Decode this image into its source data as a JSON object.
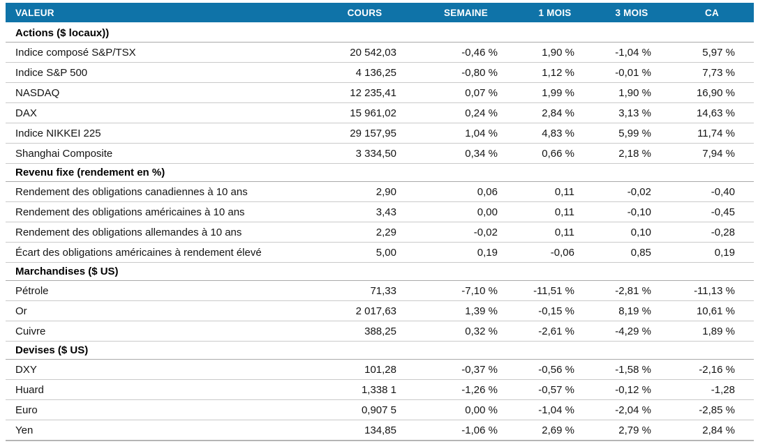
{
  "colors": {
    "header_bg": "#0F73A8",
    "positive": "#00A65A",
    "negative": "#E8322A",
    "row_border": "#C9C9C9",
    "section_border": "#A9A9A9"
  },
  "chart_data": {
    "type": "table",
    "columns": [
      "VALEUR",
      "COURS",
      "SEMAINE",
      "1 MOIS",
      "3 MOIS",
      "CA"
    ],
    "sections": [
      {
        "title": "Actions ($ locaux))",
        "rows": [
          {
            "label": "Indice composé S&P/TSX",
            "cours": "20 542,03",
            "changes": [
              {
                "text": "-0,46 %",
                "tone": "neg"
              },
              {
                "text": "1,90 %",
                "tone": "pos"
              },
              {
                "text": "-1,04 %",
                "tone": "neg"
              },
              {
                "text": "5,97 %",
                "tone": "pos"
              }
            ]
          },
          {
            "label": "Indice S&P 500",
            "cours": "4 136,25",
            "changes": [
              {
                "text": "-0,80 %",
                "tone": "neg"
              },
              {
                "text": "1,12 %",
                "tone": "pos"
              },
              {
                "text": "-0,01 %",
                "tone": "neg"
              },
              {
                "text": "7,73 %",
                "tone": "pos"
              }
            ]
          },
          {
            "label": "NASDAQ",
            "cours": "12 235,41",
            "changes": [
              {
                "text": "0,07 %",
                "tone": "pos"
              },
              {
                "text": "1,99 %",
                "tone": "pos"
              },
              {
                "text": "1,90 %",
                "tone": "pos"
              },
              {
                "text": "16,90 %",
                "tone": "pos"
              }
            ]
          },
          {
            "label": "DAX",
            "cours": "15 961,02",
            "changes": [
              {
                "text": "0,24 %",
                "tone": "pos"
              },
              {
                "text": "2,84 %",
                "tone": "pos"
              },
              {
                "text": "3,13 %",
                "tone": "pos"
              },
              {
                "text": "14,63 %",
                "tone": "pos"
              }
            ]
          },
          {
            "label": "Indice NIKKEI 225",
            "cours": "29 157,95",
            "changes": [
              {
                "text": "1,04 %",
                "tone": "pos"
              },
              {
                "text": "4,83 %",
                "tone": "pos"
              },
              {
                "text": "5,99 %",
                "tone": "pos"
              },
              {
                "text": "11,74 %",
                "tone": "pos"
              }
            ]
          },
          {
            "label": "Shanghai Composite",
            "cours": "3 334,50",
            "changes": [
              {
                "text": "0,34 %",
                "tone": "pos"
              },
              {
                "text": "0,66 %",
                "tone": "pos"
              },
              {
                "text": "2,18 %",
                "tone": "pos"
              },
              {
                "text": "7,94 %",
                "tone": "pos"
              }
            ]
          }
        ]
      },
      {
        "title": "Revenu fixe (rendement en %)",
        "rows": [
          {
            "label": "Rendement des obligations canadiennes à 10 ans",
            "cours": "2,90",
            "changes": [
              {
                "text": "0,06",
                "tone": "neg"
              },
              {
                "text": "0,11",
                "tone": "neg"
              },
              {
                "text": "-0,02",
                "tone": "pos"
              },
              {
                "text": "-0,40",
                "tone": "pos"
              }
            ]
          },
          {
            "label": "Rendement des obligations américaines à 10 ans",
            "cours": "3,43",
            "changes": [
              {
                "text": "0,00",
                "tone": "neg"
              },
              {
                "text": "0,11",
                "tone": "neg"
              },
              {
                "text": "-0,10",
                "tone": "pos"
              },
              {
                "text": "-0,45",
                "tone": "pos"
              }
            ]
          },
          {
            "label": "Rendement des obligations allemandes à 10 ans",
            "cours": "2,29",
            "changes": [
              {
                "text": "-0,02",
                "tone": "pos"
              },
              {
                "text": "0,11",
                "tone": "neg"
              },
              {
                "text": "0,10",
                "tone": "neg"
              },
              {
                "text": "-0,28",
                "tone": "pos"
              }
            ]
          },
          {
            "label": "Écart des obligations américaines à rendement élevé",
            "cours": "5,00",
            "changes": [
              {
                "text": "0,19",
                "tone": "neg"
              },
              {
                "text": "-0,06",
                "tone": "pos"
              },
              {
                "text": "0,85",
                "tone": "neg"
              },
              {
                "text": "0,19",
                "tone": "neg"
              }
            ]
          }
        ]
      },
      {
        "title": "Marchandises ($ US)",
        "rows": [
          {
            "label": "Pétrole",
            "cours": "71,33",
            "changes": [
              {
                "text": "-7,10 %",
                "tone": "neg"
              },
              {
                "text": "-11,51 %",
                "tone": "neg"
              },
              {
                "text": "-2,81 %",
                "tone": "neg"
              },
              {
                "text": "-11,13 %",
                "tone": "neg"
              }
            ]
          },
          {
            "label": "Or",
            "cours": "2 017,63",
            "changes": [
              {
                "text": "1,39 %",
                "tone": "pos"
              },
              {
                "text": "-0,15 %",
                "tone": "neg"
              },
              {
                "text": "8,19 %",
                "tone": "pos"
              },
              {
                "text": "10,61 %",
                "tone": "pos"
              }
            ]
          },
          {
            "label": "Cuivre",
            "cours": "388,25",
            "changes": [
              {
                "text": "0,32 %",
                "tone": "pos"
              },
              {
                "text": "-2,61 %",
                "tone": "neg"
              },
              {
                "text": "-4,29 %",
                "tone": "neg"
              },
              {
                "text": "1,89 %",
                "tone": "pos"
              }
            ]
          }
        ]
      },
      {
        "title": "Devises ($ US)",
        "rows": [
          {
            "label": "DXY",
            "cours": "101,28",
            "changes": [
              {
                "text": "-0,37 %",
                "tone": "neg"
              },
              {
                "text": "-0,56 %",
                "tone": "neg"
              },
              {
                "text": "-1,58 %",
                "tone": "neg"
              },
              {
                "text": "-2,16 %",
                "tone": "neg"
              }
            ]
          },
          {
            "label": "Huard",
            "cours": "1,338 1",
            "changes": [
              {
                "text": "-1,26 %",
                "tone": "neg"
              },
              {
                "text": "-0,57 %",
                "tone": "neg"
              },
              {
                "text": "-0,12 %",
                "tone": "neg"
              },
              {
                "text": "-1,28",
                "tone": "neg"
              }
            ]
          },
          {
            "label": "Euro",
            "cours": "0,907 5",
            "changes": [
              {
                "text": "0,00 %",
                "tone": "neutral"
              },
              {
                "text": "-1,04 %",
                "tone": "neg"
              },
              {
                "text": "-2,04 %",
                "tone": "neg"
              },
              {
                "text": "-2,85 %",
                "tone": "neg"
              }
            ]
          },
          {
            "label": "Yen",
            "cours": "134,85",
            "changes": [
              {
                "text": "-1,06 %",
                "tone": "neg"
              },
              {
                "text": "2,69 %",
                "tone": "pos"
              },
              {
                "text": "2,79 %",
                "tone": "pos"
              },
              {
                "text": "2,84 %",
                "tone": "pos"
              }
            ]
          }
        ]
      }
    ]
  }
}
